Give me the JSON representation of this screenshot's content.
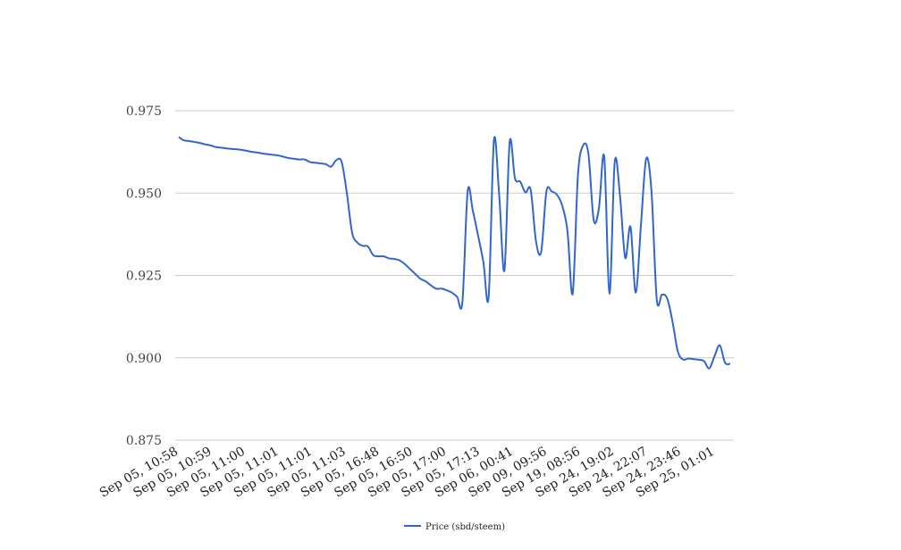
{
  "chart_data": {
    "type": "line",
    "title": "",
    "xlabel": "",
    "ylabel": "",
    "ylim": [
      0.875,
      0.975
    ],
    "y_ticks": [
      0.875,
      0.9,
      0.925,
      0.95,
      0.975
    ],
    "y_tick_labels": [
      "0.875",
      "0.900",
      "0.925",
      "0.950",
      "0.975"
    ],
    "x_tick_labels": [
      "Sep 05, 10:58",
      "Sep 05, 10:59",
      "Sep 05, 11:00",
      "Sep 05, 11:01",
      "Sep 05, 11:01",
      "Sep 05, 11:03",
      "Sep 05, 16:48",
      "Sep 05, 16:50",
      "Sep 05, 17:00",
      "Sep 05, 17:13",
      "Sep 06, 00:41",
      "Sep 09, 09:56",
      "Sep 19, 08:56",
      "Sep 24, 19:02",
      "Sep 24, 22:07",
      "Sep 24, 23:46",
      "Sep 25, 01:01"
    ],
    "grid": true,
    "legend_position": "bottom",
    "series": [
      {
        "name": "Price (sbd/steem)",
        "color": "#3366cc",
        "values": [
          0.967,
          0.966,
          0.9658,
          0.9655,
          0.9652,
          0.9648,
          0.9645,
          0.964,
          0.9638,
          0.9636,
          0.9634,
          0.9633,
          0.9631,
          0.9628,
          0.9625,
          0.9623,
          0.962,
          0.9618,
          0.9616,
          0.9614,
          0.961,
          0.9606,
          0.9604,
          0.9602,
          0.9602,
          0.9594,
          0.9592,
          0.959,
          0.9588,
          0.958,
          0.96,
          0.9595,
          0.95,
          0.938,
          0.935,
          0.934,
          0.9338,
          0.9312,
          0.9308,
          0.9308,
          0.9302,
          0.93,
          0.9296,
          0.9285,
          0.927,
          0.9255,
          0.924,
          0.9232,
          0.922,
          0.921,
          0.921,
          0.9205,
          0.9198,
          0.9185,
          0.917,
          0.9505,
          0.9445,
          0.937,
          0.929,
          0.9185,
          0.966,
          0.9495,
          0.9265,
          0.9655,
          0.9545,
          0.9535,
          0.9502,
          0.951,
          0.9355,
          0.9322,
          0.9505,
          0.9505,
          0.9495,
          0.9462,
          0.9385,
          0.9195,
          0.9555,
          0.9645,
          0.9618,
          0.9418,
          0.9455,
          0.961,
          0.9195,
          0.9595,
          0.9492,
          0.9303,
          0.9398,
          0.9198,
          0.9405,
          0.9605,
          0.9505,
          0.9178,
          0.9192,
          0.918,
          0.911,
          0.902,
          0.8995,
          0.8998,
          0.8996,
          0.8994,
          0.899,
          0.8968,
          0.9005,
          0.9038,
          0.8985,
          0.8982
        ]
      }
    ]
  }
}
